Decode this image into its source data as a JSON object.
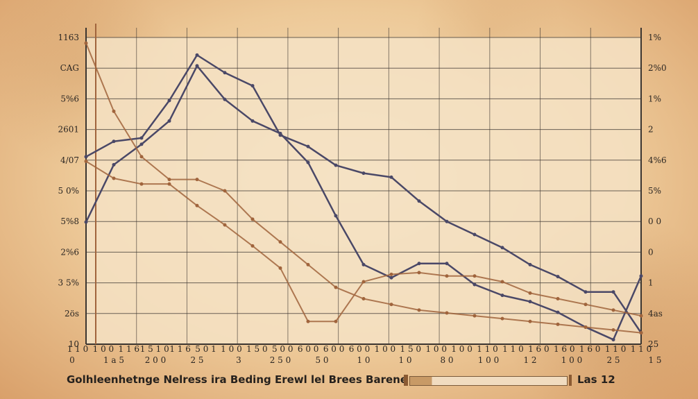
{
  "chart_data": {
    "type": "line",
    "title": "",
    "xlabel": "",
    "ylabel": "",
    "y_tick_labels_left": [
      "1163",
      "CAG",
      "5%6",
      "2601",
      "4/07",
      "5 0%",
      "5%8",
      "2%6",
      "3 5%",
      "2ös",
      "10"
    ],
    "y_tick_labels_right": [
      "1%",
      "2%0",
      "1%",
      "2",
      "4%6",
      "5%",
      "0 0",
      "0",
      "1",
      "4as",
      "25"
    ],
    "x_tick_labels_top": [
      "1 1 0",
      "1 0 0",
      "1 1 6",
      "1 5 1 0",
      "1 1 6",
      "5 0 1",
      "1 0 0",
      "1 5 0",
      "5 0 0",
      "6 0 0",
      "6 0 0",
      "6 0 0",
      "1 0 0",
      "1 5 0",
      "1 0 0",
      "1 0 0",
      "1 1 0",
      "1 1 0",
      "1 6 0",
      "1 6 0",
      "1 6 0",
      "1 1 0",
      "1 1 0"
    ],
    "x_tick_labels_bottom": [
      "0",
      "1 a 5",
      "2 0 0",
      "2 5",
      "3",
      "2 5 0",
      "5 0",
      "1 0",
      "1 0",
      "8 0",
      "1 0 0",
      "1 2",
      "1 0 0",
      "2 5",
      "1 5"
    ],
    "x": [
      0,
      1,
      2,
      3,
      4,
      5,
      6,
      7,
      8,
      9,
      10,
      11,
      12,
      13,
      14,
      15,
      16,
      17,
      18,
      19,
      20
    ],
    "series": [
      {
        "name": "",
        "color": "#4a4867",
        "values": [
          2.15,
          3.16,
          3.52,
          3.93,
          4.9,
          4.31,
          3.93,
          3.71,
          3.2,
          2.26,
          1.4,
          1.17,
          1.42,
          1.42,
          1.05,
          0.86,
          0.75,
          0.56,
          0.3,
          0.08,
          1.2
        ]
      },
      {
        "name": "",
        "color": "#4a4867",
        "values": [
          3.3,
          3.57,
          3.63,
          4.29,
          5.09,
          4.78,
          4.55,
          3.68,
          3.48,
          3.15,
          3.01,
          2.94,
          2.52,
          2.16,
          1.93,
          1.7,
          1.4,
          1.19,
          0.92,
          0.92,
          0.2
        ]
      },
      {
        "name": "",
        "color": "#a0643c",
        "values": [
          3.22,
          2.92,
          2.82,
          2.82,
          2.44,
          2.1,
          1.73,
          1.34,
          0.4,
          0.4,
          1.1,
          1.23,
          1.26,
          1.2,
          1.2,
          1.1,
          0.9,
          0.8,
          0.7,
          0.6,
          0.5
        ]
      },
      {
        "name": "",
        "color": "#a0643c",
        "values": [
          5.3,
          4.1,
          3.3,
          2.9,
          2.9,
          2.7,
          2.2,
          1.8,
          1.4,
          1.0,
          0.8,
          0.7,
          0.6,
          0.55,
          0.5,
          0.45,
          0.4,
          0.35,
          0.3,
          0.25,
          0.2
        ]
      }
    ],
    "ylim": [
      0,
      5.4
    ],
    "grid": true,
    "legend_position": "bottom"
  },
  "legend": {
    "text": "Golhleenhetnge Nelress ira Beding Erewl lel Brees Barene",
    "right_text": "Las 12"
  },
  "colors": {
    "background": "#f3dfbf",
    "grid": "#3b3530",
    "line_navy": "#4a4867",
    "line_brown": "#a0643c"
  }
}
